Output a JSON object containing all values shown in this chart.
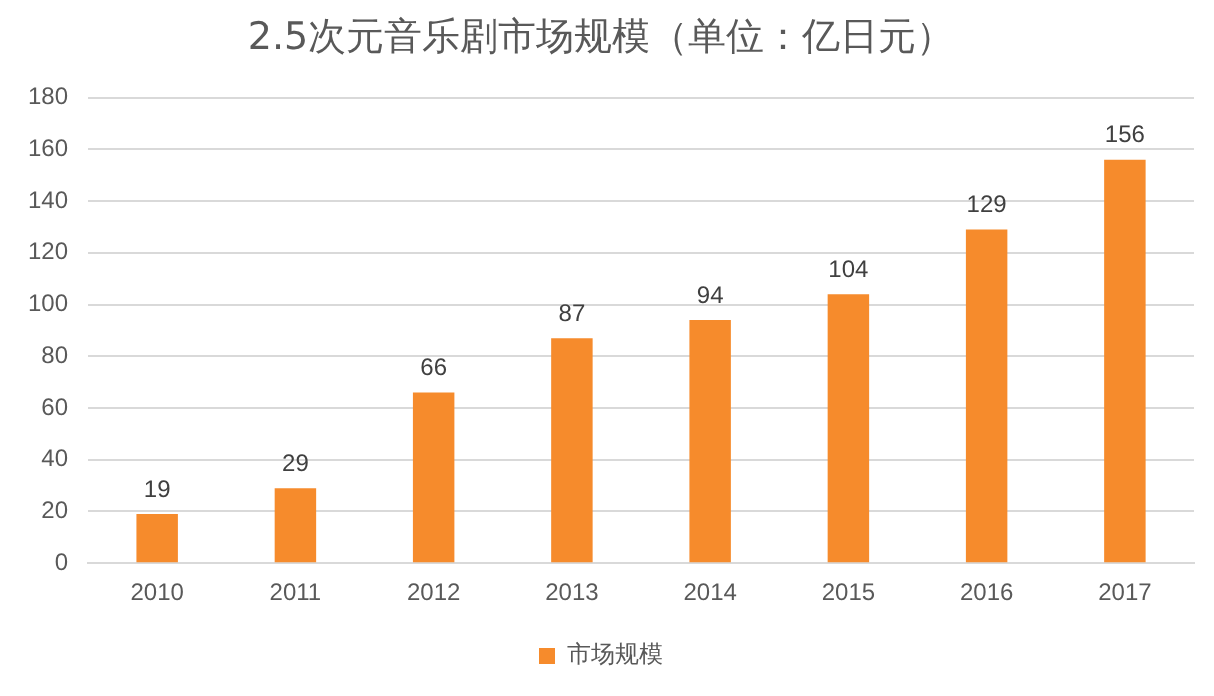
{
  "chart_data": {
    "type": "bar",
    "title": "2.5次元音乐剧市场规模（单位：亿日元）",
    "categories": [
      "2010",
      "2011",
      "2012",
      "2013",
      "2014",
      "2015",
      "2016",
      "2017"
    ],
    "series": [
      {
        "name": "市场规模",
        "color": "#f68b2c",
        "values": [
          19,
          29,
          66,
          87,
          94,
          104,
          129,
          156
        ]
      }
    ],
    "ylim": [
      0,
      180
    ],
    "yticks": [
      0,
      20,
      40,
      60,
      80,
      100,
      120,
      140,
      160,
      180
    ],
    "grid": "y",
    "legend": "bottom",
    "data_labels": true
  }
}
